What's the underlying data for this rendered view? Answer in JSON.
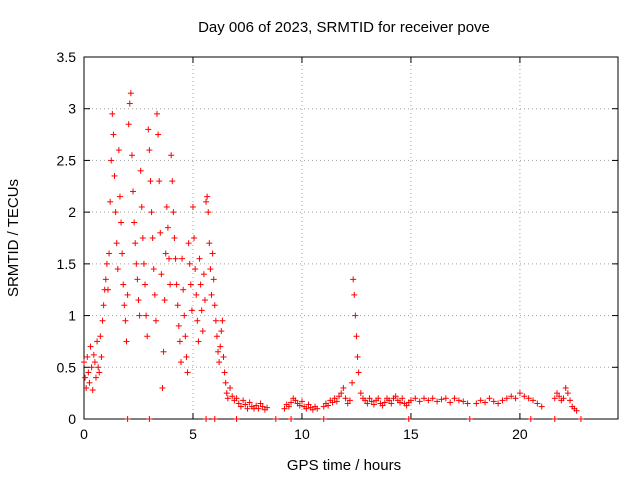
{
  "chart_data": {
    "type": "scatter",
    "title": "Day 006 of 2023, SRMTID for receiver pove",
    "xlabel": "GPS time / hours",
    "ylabel": "SRMTID / TECUs",
    "xlim": [
      0,
      24.5
    ],
    "ylim": [
      0,
      3.5
    ],
    "xticks": [
      0,
      5,
      10,
      15,
      20
    ],
    "xtick_labels": [
      "0",
      "5",
      "10",
      "15",
      "20"
    ],
    "yticks": [
      0,
      0.5,
      1,
      1.5,
      2,
      2.5,
      3,
      3.5
    ],
    "ytick_labels": [
      "0",
      "0.5",
      "1",
      "1.5",
      "2",
      "2.5",
      "3",
      "3.5"
    ],
    "grid": true,
    "marker": "+",
    "color": "#ff0000",
    "series": [
      {
        "name": "SRMTID",
        "points": [
          [
            0.0,
            0.55
          ],
          [
            0.05,
            0.4
          ],
          [
            0.1,
            0.3
          ],
          [
            0.15,
            0.6
          ],
          [
            0.2,
            0.45
          ],
          [
            0.25,
            0.35
          ],
          [
            0.3,
            0.7
          ],
          [
            0.35,
            0.5
          ],
          [
            0.4,
            0.28
          ],
          [
            0.45,
            0.62
          ],
          [
            0.5,
            0.55
          ],
          [
            0.55,
            0.4
          ],
          [
            0.6,
            0.75
          ],
          [
            0.65,
            0.5
          ],
          [
            0.7,
            0.45
          ],
          [
            0.75,
            0.8
          ],
          [
            0.8,
            0.6
          ],
          [
            0.85,
            0.95
          ],
          [
            0.9,
            1.1
          ],
          [
            0.95,
            1.25
          ],
          [
            1.0,
            1.35
          ],
          [
            1.05,
            1.5
          ],
          [
            1.1,
            1.25
          ],
          [
            1.15,
            1.6
          ],
          [
            1.2,
            2.1
          ],
          [
            1.25,
            2.5
          ],
          [
            1.3,
            2.95
          ],
          [
            1.35,
            2.75
          ],
          [
            1.4,
            2.35
          ],
          [
            1.45,
            2.0
          ],
          [
            1.5,
            1.7
          ],
          [
            1.55,
            1.45
          ],
          [
            1.6,
            2.6
          ],
          [
            1.65,
            2.15
          ],
          [
            1.7,
            1.9
          ],
          [
            1.75,
            1.6
          ],
          [
            1.8,
            1.3
          ],
          [
            1.85,
            1.1
          ],
          [
            1.9,
            0.95
          ],
          [
            1.95,
            0.75
          ],
          [
            2.0,
            1.2
          ],
          [
            2.05,
            2.85
          ],
          [
            2.1,
            3.05
          ],
          [
            2.15,
            3.15
          ],
          [
            2.2,
            2.55
          ],
          [
            2.25,
            2.2
          ],
          [
            2.3,
            1.9
          ],
          [
            2.35,
            1.7
          ],
          [
            2.4,
            1.5
          ],
          [
            2.45,
            1.35
          ],
          [
            2.5,
            1.15
          ],
          [
            2.55,
            1.0
          ],
          [
            2.6,
            2.4
          ],
          [
            2.65,
            2.05
          ],
          [
            2.7,
            1.75
          ],
          [
            2.75,
            1.5
          ],
          [
            2.8,
            1.3
          ],
          [
            2.85,
            1.0
          ],
          [
            2.9,
            0.8
          ],
          [
            2.95,
            2.8
          ],
          [
            3.0,
            2.6
          ],
          [
            3.05,
            2.3
          ],
          [
            3.1,
            2.0
          ],
          [
            3.15,
            1.75
          ],
          [
            3.2,
            1.45
          ],
          [
            3.25,
            1.2
          ],
          [
            3.3,
            0.95
          ],
          [
            3.35,
            2.95
          ],
          [
            3.4,
            2.75
          ],
          [
            3.45,
            2.3
          ],
          [
            3.5,
            1.8
          ],
          [
            3.55,
            1.4
          ],
          [
            3.6,
            0.3
          ],
          [
            3.65,
            0.65
          ],
          [
            3.7,
            1.15
          ],
          [
            3.75,
            1.6
          ],
          [
            3.8,
            2.05
          ],
          [
            3.85,
            1.85
          ],
          [
            3.9,
            1.55
          ],
          [
            3.95,
            1.3
          ],
          [
            4.0,
            2.55
          ],
          [
            4.05,
            2.3
          ],
          [
            4.1,
            2.0
          ],
          [
            4.15,
            1.75
          ],
          [
            4.2,
            1.55
          ],
          [
            4.25,
            1.3
          ],
          [
            4.3,
            1.1
          ],
          [
            4.35,
            0.9
          ],
          [
            4.4,
            0.75
          ],
          [
            4.45,
            0.55
          ],
          [
            4.5,
            1.55
          ],
          [
            4.55,
            1.25
          ],
          [
            4.6,
            1.0
          ],
          [
            4.65,
            0.8
          ],
          [
            4.7,
            0.6
          ],
          [
            4.75,
            0.45
          ],
          [
            4.8,
            1.7
          ],
          [
            4.85,
            1.5
          ],
          [
            4.9,
            1.3
          ],
          [
            4.95,
            1.05
          ],
          [
            5.0,
            2.05
          ],
          [
            5.05,
            1.75
          ],
          [
            5.1,
            1.45
          ],
          [
            5.15,
            1.2
          ],
          [
            5.2,
            0.95
          ],
          [
            5.25,
            0.75
          ],
          [
            5.3,
            1.55
          ],
          [
            5.35,
            1.3
          ],
          [
            5.4,
            1.05
          ],
          [
            5.45,
            0.85
          ],
          [
            5.5,
            1.4
          ],
          [
            5.55,
            1.15
          ],
          [
            5.6,
            2.1
          ],
          [
            5.65,
            2.15
          ],
          [
            5.7,
            2.0
          ],
          [
            5.75,
            1.7
          ],
          [
            5.8,
            1.45
          ],
          [
            5.85,
            1.2
          ],
          [
            5.9,
            1.6
          ],
          [
            5.95,
            1.35
          ],
          [
            6.0,
            1.1
          ],
          [
            6.05,
            0.95
          ],
          [
            6.1,
            0.8
          ],
          [
            6.15,
            0.65
          ],
          [
            6.2,
            0.55
          ],
          [
            6.25,
            0.7
          ],
          [
            6.3,
            0.85
          ],
          [
            6.35,
            0.95
          ],
          [
            6.4,
            0.6
          ],
          [
            6.45,
            0.45
          ],
          [
            6.5,
            0.35
          ],
          [
            6.55,
            0.25
          ],
          [
            6.6,
            0.2
          ],
          [
            6.7,
            0.3
          ],
          [
            6.8,
            0.22
          ],
          [
            6.9,
            0.18
          ],
          [
            7.0,
            0.2
          ],
          [
            7.1,
            0.15
          ],
          [
            7.2,
            0.12
          ],
          [
            7.3,
            0.18
          ],
          [
            7.4,
            0.14
          ],
          [
            7.5,
            0.1
          ],
          [
            7.6,
            0.16
          ],
          [
            7.7,
            0.12
          ],
          [
            7.8,
            0.1
          ],
          [
            7.9,
            0.13
          ],
          [
            8.0,
            0.1
          ],
          [
            8.1,
            0.15
          ],
          [
            8.2,
            0.12
          ],
          [
            8.3,
            0.09
          ],
          [
            8.4,
            0.11
          ],
          [
            9.2,
            0.1
          ],
          [
            9.3,
            0.14
          ],
          [
            9.4,
            0.12
          ],
          [
            9.5,
            0.16
          ],
          [
            9.6,
            0.2
          ],
          [
            9.7,
            0.18
          ],
          [
            9.8,
            0.15
          ],
          [
            9.9,
            0.13
          ],
          [
            10.0,
            0.17
          ],
          [
            10.1,
            0.12
          ],
          [
            10.2,
            0.1
          ],
          [
            10.3,
            0.14
          ],
          [
            10.4,
            0.11
          ],
          [
            10.5,
            0.09
          ],
          [
            10.6,
            0.12
          ],
          [
            10.7,
            0.1
          ],
          [
            11.0,
            0.12
          ],
          [
            11.1,
            0.15
          ],
          [
            11.2,
            0.13
          ],
          [
            11.3,
            0.18
          ],
          [
            11.4,
            0.16
          ],
          [
            11.5,
            0.2
          ],
          [
            11.6,
            0.17
          ],
          [
            11.7,
            0.22
          ],
          [
            11.8,
            0.25
          ],
          [
            11.9,
            0.3
          ],
          [
            12.0,
            0.2
          ],
          [
            12.1,
            0.15
          ],
          [
            12.2,
            0.18
          ],
          [
            12.3,
            0.35
          ],
          [
            12.35,
            1.35
          ],
          [
            12.4,
            1.2
          ],
          [
            12.45,
            1.0
          ],
          [
            12.5,
            0.8
          ],
          [
            12.55,
            0.6
          ],
          [
            12.6,
            0.45
          ],
          [
            12.7,
            0.25
          ],
          [
            12.8,
            0.2
          ],
          [
            12.9,
            0.18
          ],
          [
            13.0,
            0.15
          ],
          [
            13.1,
            0.2
          ],
          [
            13.2,
            0.17
          ],
          [
            13.3,
            0.14
          ],
          [
            13.4,
            0.18
          ],
          [
            13.5,
            0.2
          ],
          [
            13.6,
            0.15
          ],
          [
            13.7,
            0.13
          ],
          [
            13.8,
            0.16
          ],
          [
            13.9,
            0.2
          ],
          [
            14.0,
            0.18
          ],
          [
            14.1,
            0.15
          ],
          [
            14.2,
            0.2
          ],
          [
            14.3,
            0.22
          ],
          [
            14.4,
            0.18
          ],
          [
            14.5,
            0.16
          ],
          [
            14.6,
            0.2
          ],
          [
            14.7,
            0.15
          ],
          [
            14.8,
            0.13
          ],
          [
            14.9,
            0.16
          ],
          [
            15.0,
            0.18
          ],
          [
            15.2,
            0.2
          ],
          [
            15.4,
            0.17
          ],
          [
            15.6,
            0.2
          ],
          [
            15.8,
            0.18
          ],
          [
            16.0,
            0.2
          ],
          [
            16.2,
            0.17
          ],
          [
            16.4,
            0.19
          ],
          [
            16.6,
            0.2
          ],
          [
            16.8,
            0.16
          ],
          [
            17.0,
            0.2
          ],
          [
            17.2,
            0.18
          ],
          [
            17.4,
            0.17
          ],
          [
            17.6,
            0.15
          ],
          [
            18.0,
            0.15
          ],
          [
            18.2,
            0.18
          ],
          [
            18.4,
            0.16
          ],
          [
            18.6,
            0.2
          ],
          [
            18.8,
            0.17
          ],
          [
            19.0,
            0.15
          ],
          [
            19.2,
            0.18
          ],
          [
            19.4,
            0.2
          ],
          [
            19.6,
            0.22
          ],
          [
            19.8,
            0.2
          ],
          [
            20.0,
            0.25
          ],
          [
            20.2,
            0.22
          ],
          [
            20.4,
            0.2
          ],
          [
            20.6,
            0.18
          ],
          [
            20.8,
            0.15
          ],
          [
            21.0,
            0.12
          ],
          [
            21.6,
            0.2
          ],
          [
            21.7,
            0.25
          ],
          [
            21.8,
            0.22
          ],
          [
            21.9,
            0.18
          ],
          [
            22.0,
            0.2
          ],
          [
            22.1,
            0.3
          ],
          [
            22.2,
            0.25
          ],
          [
            22.3,
            0.18
          ],
          [
            22.4,
            0.12
          ],
          [
            22.5,
            0.1
          ],
          [
            22.6,
            0.08
          ]
        ]
      }
    ],
    "zero_points_x": [
      2.0,
      3.0,
      5.6,
      6.0,
      7.0,
      8.8,
      9.5,
      11.0,
      14.9,
      17.7,
      20.5,
      21.6,
      22.8
    ]
  }
}
